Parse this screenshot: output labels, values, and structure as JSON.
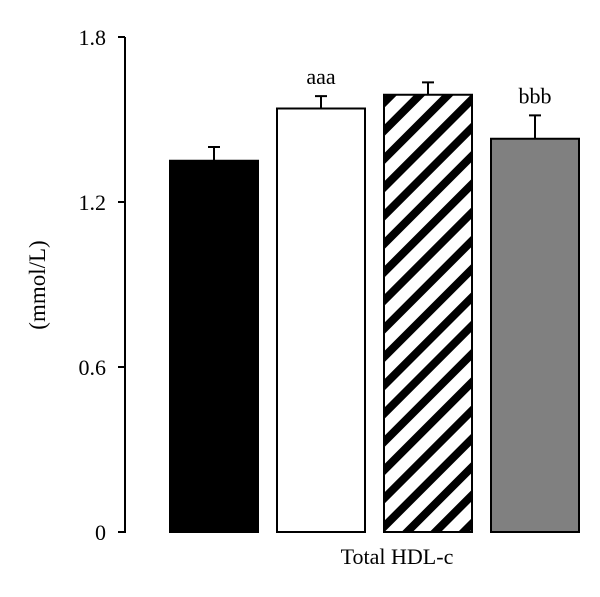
{
  "chart_data": {
    "type": "bar",
    "ylabel": "(mmol/L)",
    "xlabel": "Total HDL-c",
    "ylim": [
      0,
      1.8
    ],
    "yticks": [
      "0",
      "0.6",
      "1.2",
      "1.8"
    ],
    "ytick_values": [
      0,
      0.6,
      1.2,
      1.8
    ],
    "grid": false,
    "bars": [
      {
        "value": 1.35,
        "error": 0.05,
        "fill": "solid",
        "color": "#000000",
        "annotation": ""
      },
      {
        "value": 1.54,
        "error": 0.045,
        "fill": "solid",
        "color": "#ffffff",
        "annotation": "aaa"
      },
      {
        "value": 1.59,
        "error": 0.045,
        "fill": "diagonal-stripes",
        "color": "#000000",
        "annotation": ""
      },
      {
        "value": 1.43,
        "error": 0.085,
        "fill": "solid",
        "color": "#808080",
        "annotation": "bbb"
      }
    ]
  }
}
